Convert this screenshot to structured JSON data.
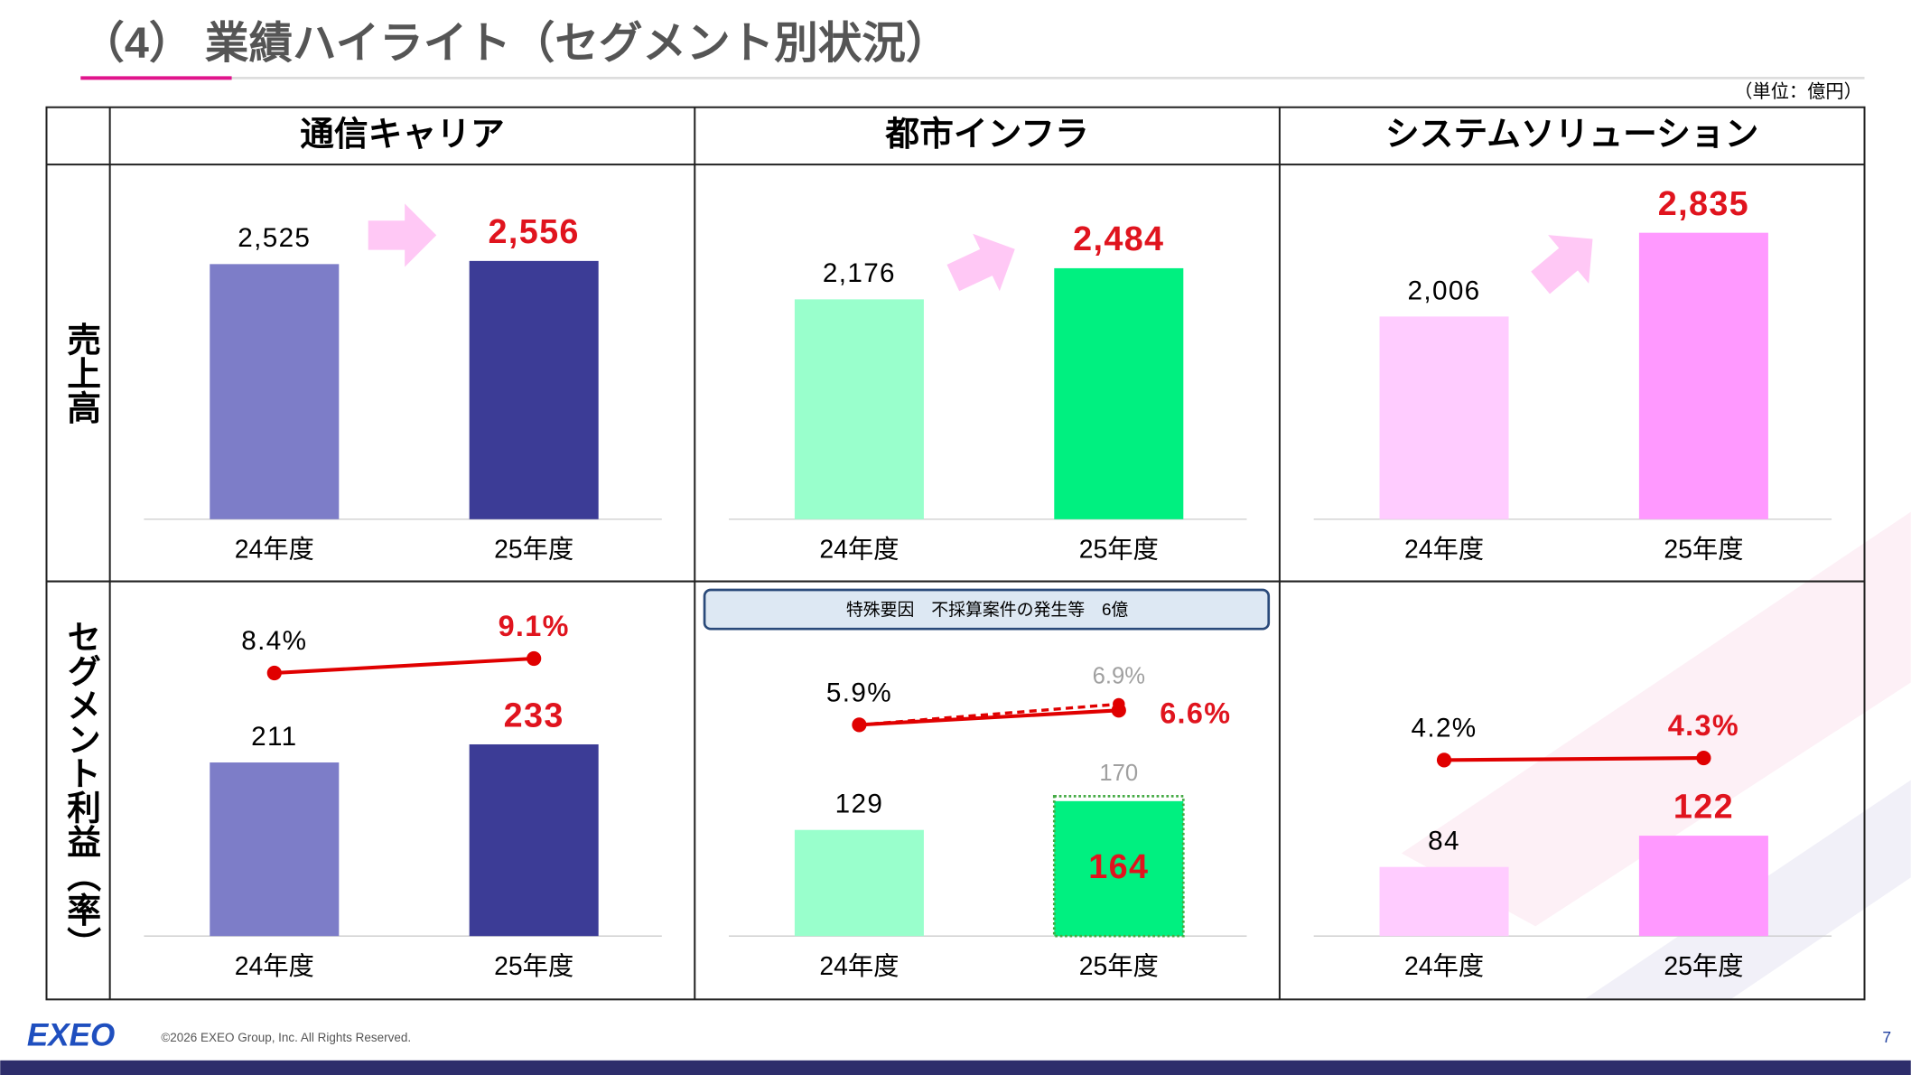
{
  "header": {
    "title": "（4） 業績ハイライト（セグメント別状況）",
    "unit": "（単位：億円）"
  },
  "table": {
    "columns": [
      "通信キャリア",
      "都市インフラ",
      "システムソリューション"
    ],
    "rows": [
      "売上高",
      "セグメント利益（率）"
    ]
  },
  "chart_data": [
    {
      "type": "bar",
      "categories": [
        "24年度",
        "25年度"
      ],
      "values": [
        2525,
        2556
      ],
      "value_labels": [
        "2,525",
        "2,556"
      ],
      "colors": [
        "#7d7dc8",
        "#3c3c96"
      ],
      "highlight_color": "#e0141e"
    },
    {
      "type": "bar",
      "categories": [
        "24年度",
        "25年度"
      ],
      "values": [
        2176,
        2484
      ],
      "value_labels": [
        "2,176",
        "2,484"
      ],
      "colors": [
        "#99ffcc",
        "#00f080"
      ],
      "highlight_color": "#e0141e"
    },
    {
      "type": "bar",
      "categories": [
        "24年度",
        "25年度"
      ],
      "values": [
        2006,
        2835
      ],
      "value_labels": [
        "2,006",
        "2,835"
      ],
      "colors": [
        "#ffccff",
        "#ff99ff"
      ],
      "highlight_color": "#e0141e"
    },
    {
      "type": "bar-line",
      "categories": [
        "24年度",
        "25年度"
      ],
      "values": [
        211,
        233
      ],
      "colors": [
        "#7d7dc8",
        "#3c3c96"
      ],
      "highlight_color": "#e0141e",
      "rate": {
        "values": [
          8.4,
          9.1
        ],
        "value_labels": [
          "8.4%",
          "9.1%"
        ],
        "color": "#e00000"
      }
    },
    {
      "type": "bar-line",
      "categories": [
        "24年度",
        "25年度"
      ],
      "values": [
        129,
        164
      ],
      "colors": [
        "#99ffcc",
        "#00f080"
      ],
      "highlight_color": "#e0141e",
      "rate": {
        "values": [
          5.9,
          6.6
        ],
        "value_labels": [
          "5.9%",
          "6.6%"
        ],
        "color": "#e00000"
      },
      "reference": {
        "values": [
          null,
          170
        ],
        "rate_values": [
          null,
          6.9
        ],
        "rate_value_labels": [
          null,
          "6.9%"
        ],
        "color": "#a0a0a0"
      },
      "annotation": "特殊要因　不採算案件の発生等　6億"
    },
    {
      "type": "bar-line",
      "categories": [
        "24年度",
        "25年度"
      ],
      "values": [
        84,
        122
      ],
      "colors": [
        "#ffccff",
        "#ff99ff"
      ],
      "highlight_color": "#e0141e",
      "rate": {
        "values": [
          4.2,
          4.3
        ],
        "value_labels": [
          "4.2%",
          "4.3%"
        ],
        "color": "#e00000"
      }
    }
  ],
  "footer": {
    "logo": "EXEO",
    "copyright": "©2026 EXEO Group, Inc. All Rights Reserved.",
    "page": "7"
  }
}
